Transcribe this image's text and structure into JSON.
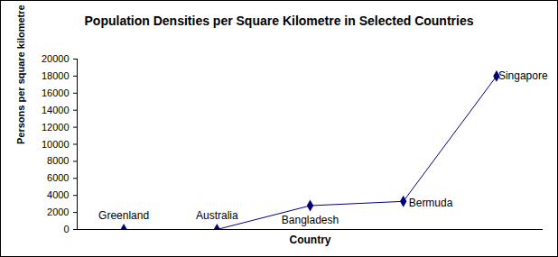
{
  "chart_data": {
    "type": "line",
    "title": "Population Densities per Square Kilometre in Selected Countries",
    "x_label": "Country",
    "y_label": "Persons per square kilometre",
    "categories": [
      "Greenland",
      "Australia",
      "Bangladesh",
      "Bermuda",
      "Singapore"
    ],
    "values": [
      0,
      0,
      2800,
      3300,
      18000
    ],
    "color": "#000080",
    "marker": "diamond",
    "line_style": "solid",
    "ylim": [
      0,
      20000
    ],
    "yticks": [
      0,
      2000,
      4000,
      6000,
      8000,
      10000,
      12000,
      14000,
      16000,
      18000,
      20000
    ],
    "grid": false,
    "tick_labels": "y"
  }
}
